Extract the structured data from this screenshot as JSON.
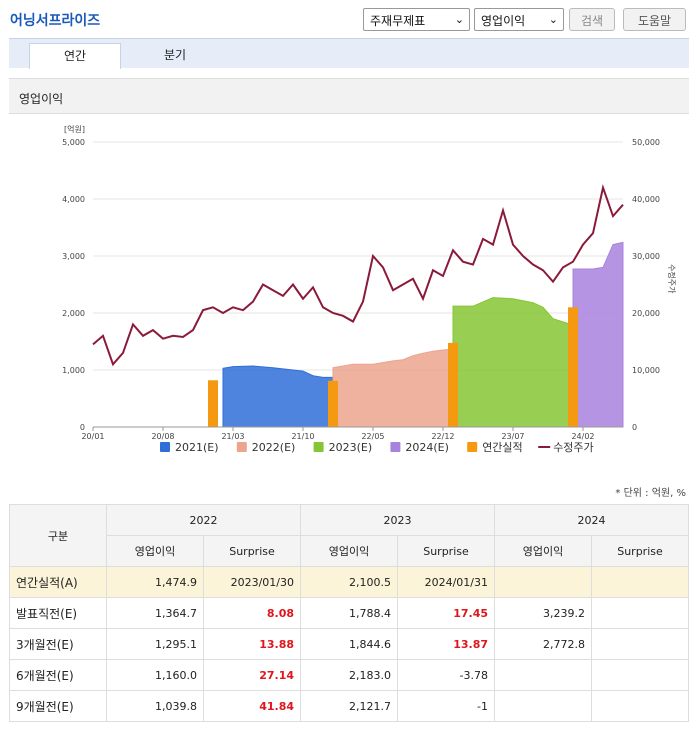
{
  "header": {
    "company": "어닝서프라이즈",
    "select1": "주재무제표",
    "select2": "영업이익",
    "search_label": "검색",
    "help_label": "도움말"
  },
  "tabs": [
    {
      "label": "연간"
    },
    {
      "label": "분기"
    }
  ],
  "section_title": "영업이익",
  "unit_note": "* 단위 : 억원, %",
  "colors": {
    "2021(E)": "#2f6fd8",
    "2022(E)": "#eba48e",
    "2023(E)": "#86c534",
    "2024(E)": "#a883de",
    "연간실적": "#f59a10",
    "수정주가": "#8b1a3a"
  },
  "chart_data": {
    "type": "area",
    "left_axis_unit": "[억원]",
    "right_axis_label": "수정주가",
    "ylim_left": [
      0,
      5000
    ],
    "ylim_right": [
      0,
      50000
    ],
    "yticks_left": [
      "0",
      "1,000",
      "2,000",
      "3,000",
      "4,000",
      "5,000"
    ],
    "yticks_right": [
      "0",
      "10,000",
      "20,000",
      "30,000",
      "40,000",
      "50,000"
    ],
    "x_ticks": [
      "20/01",
      "20/08",
      "21/03",
      "21/10",
      "22/05",
      "22/12",
      "23/07",
      "24/02"
    ],
    "x_range": [
      "2020-01",
      "2024-06"
    ],
    "legend": [
      "2021(E)",
      "2022(E)",
      "2023(E)",
      "2024(E)",
      "연간실적",
      "수정주가"
    ],
    "legend_position": "bottom",
    "series": [
      {
        "name": "2021(E)",
        "type": "area",
        "points": [
          [
            "2021-02",
            1030
          ],
          [
            "2021-03",
            1060
          ],
          [
            "2021-05",
            1070
          ],
          [
            "2021-07",
            1040
          ],
          [
            "2021-09",
            1000
          ],
          [
            "2021-10",
            980
          ],
          [
            "2021-11",
            900
          ],
          [
            "2021-12",
            870
          ],
          [
            "2022-01",
            870
          ]
        ]
      },
      {
        "name": "2022(E)",
        "type": "area",
        "points": [
          [
            "2022-01",
            1040
          ],
          [
            "2022-03",
            1100
          ],
          [
            "2022-05",
            1100
          ],
          [
            "2022-07",
            1160
          ],
          [
            "2022-08",
            1180
          ],
          [
            "2022-09",
            1250
          ],
          [
            "2022-10",
            1295
          ],
          [
            "2022-11",
            1330
          ],
          [
            "2022-12",
            1350
          ],
          [
            "2023-01",
            1365
          ]
        ]
      },
      {
        "name": "2023(E)",
        "type": "area",
        "points": [
          [
            "2023-01",
            2120
          ],
          [
            "2023-03",
            2120
          ],
          [
            "2023-05",
            2270
          ],
          [
            "2023-07",
            2250
          ],
          [
            "2023-09",
            2180
          ],
          [
            "2023-10",
            2100
          ],
          [
            "2023-11",
            1900
          ],
          [
            "2023-12",
            1845
          ],
          [
            "2024-01",
            1790
          ]
        ]
      },
      {
        "name": "2024(E)",
        "type": "area",
        "points": [
          [
            "2024-01",
            2773
          ],
          [
            "2024-03",
            2773
          ],
          [
            "2024-04",
            2800
          ],
          [
            "2024-05",
            3200
          ],
          [
            "2024-06",
            3239
          ]
        ]
      },
      {
        "name": "연간실적",
        "type": "bar",
        "points": [
          [
            "2021-01",
            820
          ],
          [
            "2022-01",
            810
          ],
          [
            "2023-01",
            1475
          ],
          [
            "2024-01",
            2100
          ]
        ]
      },
      {
        "name": "수정주가",
        "type": "line",
        "axis": "right",
        "points": [
          [
            "2020-01",
            14500
          ],
          [
            "2020-02",
            16000
          ],
          [
            "2020-03",
            11000
          ],
          [
            "2020-04",
            13000
          ],
          [
            "2020-05",
            18000
          ],
          [
            "2020-06",
            16000
          ],
          [
            "2020-07",
            17000
          ],
          [
            "2020-08",
            15500
          ],
          [
            "2020-09",
            16000
          ],
          [
            "2020-10",
            15800
          ],
          [
            "2020-11",
            17000
          ],
          [
            "2020-12",
            20500
          ],
          [
            "2021-01",
            21000
          ],
          [
            "2021-02",
            20000
          ],
          [
            "2021-03",
            21000
          ],
          [
            "2021-04",
            20500
          ],
          [
            "2021-05",
            22000
          ],
          [
            "2021-06",
            25000
          ],
          [
            "2021-07",
            24000
          ],
          [
            "2021-08",
            23000
          ],
          [
            "2021-09",
            25000
          ],
          [
            "2021-10",
            22500
          ],
          [
            "2021-11",
            24500
          ],
          [
            "2021-12",
            21000
          ],
          [
            "2022-01",
            20000
          ],
          [
            "2022-02",
            19500
          ],
          [
            "2022-03",
            18500
          ],
          [
            "2022-04",
            22000
          ],
          [
            "2022-05",
            30000
          ],
          [
            "2022-06",
            28000
          ],
          [
            "2022-07",
            24000
          ],
          [
            "2022-08",
            25000
          ],
          [
            "2022-09",
            26000
          ],
          [
            "2022-10",
            22500
          ],
          [
            "2022-11",
            27500
          ],
          [
            "2022-12",
            26500
          ],
          [
            "2023-01",
            31000
          ],
          [
            "2023-02",
            29000
          ],
          [
            "2023-03",
            28500
          ],
          [
            "2023-04",
            33000
          ],
          [
            "2023-05",
            32000
          ],
          [
            "2023-06",
            38000
          ],
          [
            "2023-07",
            32000
          ],
          [
            "2023-08",
            30000
          ],
          [
            "2023-09",
            28500
          ],
          [
            "2023-10",
            27500
          ],
          [
            "2023-11",
            25500
          ],
          [
            "2023-12",
            28000
          ],
          [
            "2024-01",
            29000
          ],
          [
            "2024-02",
            32000
          ],
          [
            "2024-03",
            34000
          ],
          [
            "2024-04",
            42000
          ],
          [
            "2024-05",
            37000
          ],
          [
            "2024-06",
            39000
          ]
        ]
      }
    ]
  },
  "table": {
    "group_header": "구분",
    "years": [
      "2022",
      "2023",
      "2024"
    ],
    "sub_headers": [
      "영업이익",
      "Surprise"
    ],
    "rows": [
      {
        "label": "연간실적(A)",
        "highlight": true,
        "values": [
          "1,474.9",
          "2023/01/30",
          "2,100.5",
          "2024/01/31",
          "",
          ""
        ]
      },
      {
        "label": "발표직전(E)",
        "highlight": false,
        "values": [
          "1,364.7",
          "8.08",
          "1,788.4",
          "17.45",
          "3,239.2",
          ""
        ]
      },
      {
        "label": "3개월전(E)",
        "highlight": false,
        "values": [
          "1,295.1",
          "13.88",
          "1,844.6",
          "13.87",
          "2,772.8",
          ""
        ]
      },
      {
        "label": "6개월전(E)",
        "highlight": false,
        "values": [
          "1,160.0",
          "27.14",
          "2,183.0",
          "-3.78",
          "",
          ""
        ]
      },
      {
        "label": "9개월전(E)",
        "highlight": false,
        "values": [
          "1,039.8",
          "41.84",
          "2,121.7",
          "-1",
          "",
          ""
        ]
      }
    ]
  }
}
